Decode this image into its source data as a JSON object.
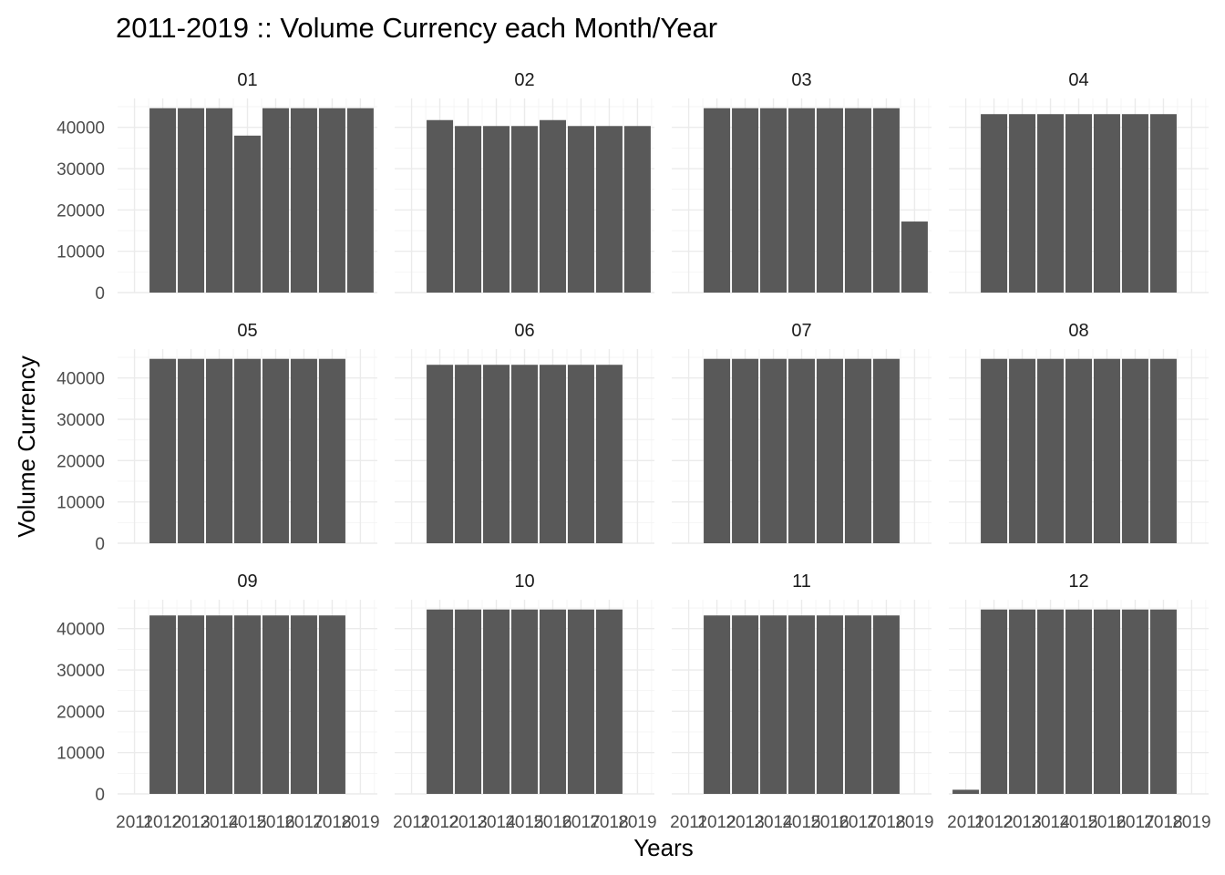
{
  "chart_data": {
    "type": "bar",
    "title": "2011-2019 :: Volume Currency each Month/Year",
    "xlabel": "Years",
    "ylabel": "Volume Currency",
    "facet_layout": "3 rows x 4 columns",
    "x_ticks": [
      "2011",
      "2012",
      "2013",
      "2014",
      "2015",
      "2016",
      "2017",
      "2018",
      "2019"
    ],
    "y_ticks": [
      "0",
      "10000",
      "20000",
      "30000",
      "40000"
    ],
    "ylim": [
      0,
      47000
    ],
    "xlim": [
      2010.4,
      2019.6
    ],
    "bar_color": "#595959",
    "grid": true,
    "panels": [
      {
        "label": "01",
        "years": [
          2012,
          2013,
          2014,
          2015,
          2016,
          2017,
          2018,
          2019
        ],
        "values": [
          44640,
          44640,
          44640,
          38000,
          44640,
          44640,
          44640,
          44640
        ]
      },
      {
        "label": "02",
        "years": [
          2012,
          2013,
          2014,
          2015,
          2016,
          2017,
          2018,
          2019
        ],
        "values": [
          41760,
          40320,
          40320,
          40320,
          41760,
          40320,
          40320,
          40320
        ]
      },
      {
        "label": "03",
        "years": [
          2012,
          2013,
          2014,
          2015,
          2016,
          2017,
          2018,
          2019
        ],
        "values": [
          44640,
          44640,
          44640,
          44640,
          44640,
          44640,
          44640,
          17200
        ]
      },
      {
        "label": "04",
        "years": [
          2012,
          2013,
          2014,
          2015,
          2016,
          2017,
          2018
        ],
        "values": [
          43200,
          43200,
          43200,
          43200,
          43200,
          43200,
          43200
        ]
      },
      {
        "label": "05",
        "years": [
          2012,
          2013,
          2014,
          2015,
          2016,
          2017,
          2018
        ],
        "values": [
          44640,
          44640,
          44640,
          44640,
          44640,
          44640,
          44640
        ]
      },
      {
        "label": "06",
        "years": [
          2012,
          2013,
          2014,
          2015,
          2016,
          2017,
          2018
        ],
        "values": [
          43200,
          43200,
          43200,
          43200,
          43200,
          43200,
          43200
        ]
      },
      {
        "label": "07",
        "years": [
          2012,
          2013,
          2014,
          2015,
          2016,
          2017,
          2018
        ],
        "values": [
          44640,
          44640,
          44640,
          44640,
          44640,
          44640,
          44640
        ]
      },
      {
        "label": "08",
        "years": [
          2012,
          2013,
          2014,
          2015,
          2016,
          2017,
          2018
        ],
        "values": [
          44640,
          44640,
          44640,
          44640,
          44640,
          44640,
          44640
        ]
      },
      {
        "label": "09",
        "years": [
          2012,
          2013,
          2014,
          2015,
          2016,
          2017,
          2018
        ],
        "values": [
          43200,
          43200,
          43200,
          43200,
          43200,
          43200,
          43200
        ]
      },
      {
        "label": "10",
        "years": [
          2012,
          2013,
          2014,
          2015,
          2016,
          2017,
          2018
        ],
        "values": [
          44640,
          44640,
          44640,
          44640,
          44640,
          44640,
          44640
        ]
      },
      {
        "label": "11",
        "years": [
          2012,
          2013,
          2014,
          2015,
          2016,
          2017,
          2018
        ],
        "values": [
          43200,
          43200,
          43200,
          43200,
          43200,
          43200,
          43200
        ]
      },
      {
        "label": "12",
        "years": [
          2011,
          2012,
          2013,
          2014,
          2015,
          2016,
          2017,
          2018
        ],
        "values": [
          1000,
          44640,
          44640,
          44640,
          44640,
          44640,
          44640,
          44640
        ]
      }
    ]
  }
}
